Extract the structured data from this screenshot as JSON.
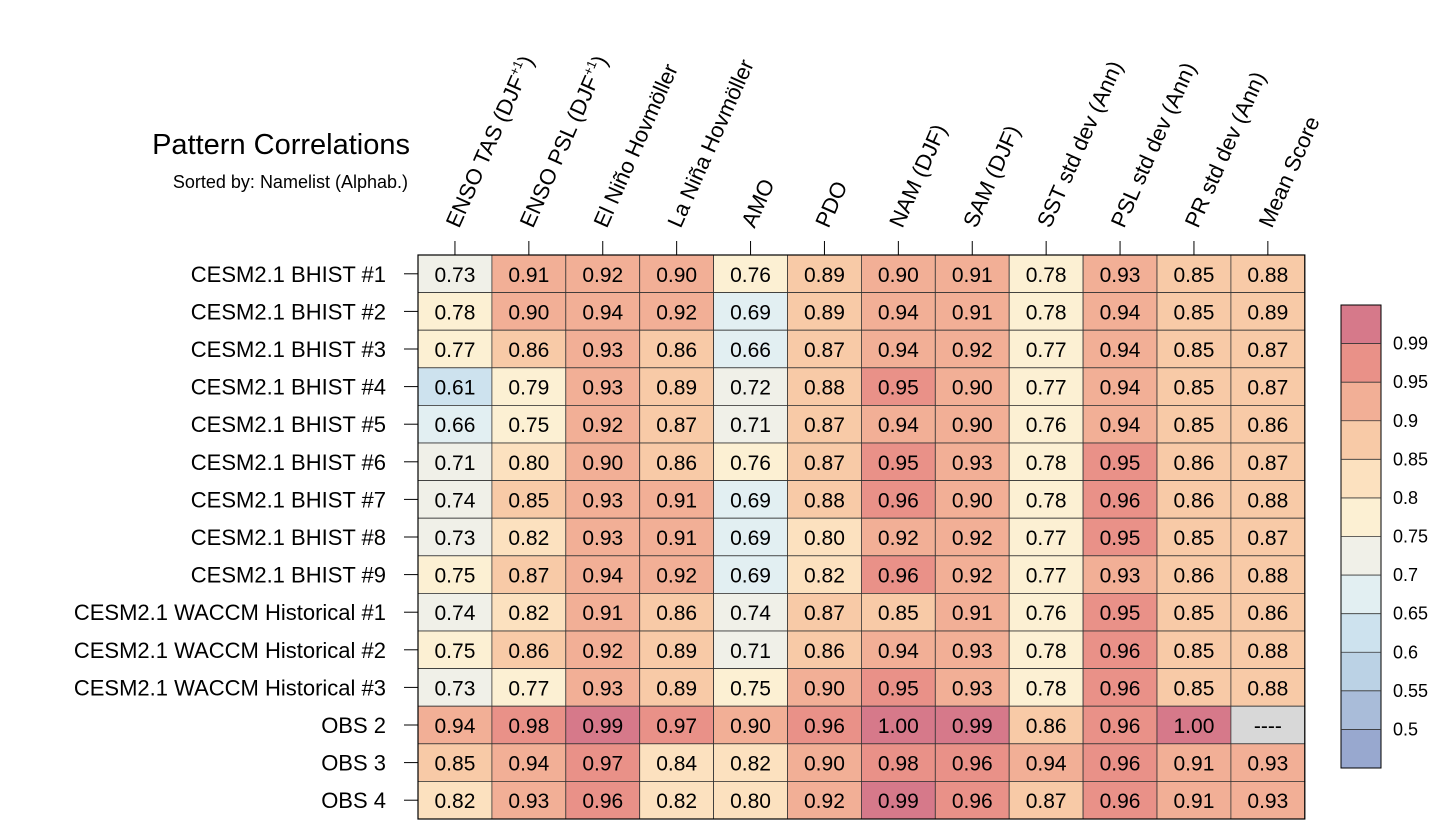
{
  "chart_data": {
    "type": "heatmap",
    "title": "Pattern Correlations",
    "subtitle": "Sorted by: Namelist (Alphab.)",
    "columns": [
      {
        "base": "ENSO TAS (DJF",
        "sup": "+1",
        "tail": ")"
      },
      {
        "base": "ENSO PSL (DJF",
        "sup": "+1",
        "tail": ")"
      },
      {
        "base": "El Niño Hovmöller",
        "sup": "",
        "tail": ""
      },
      {
        "base": "La Niña Hovmöller",
        "sup": "",
        "tail": ""
      },
      {
        "base": "AMO",
        "sup": "",
        "tail": ""
      },
      {
        "base": "PDO",
        "sup": "",
        "tail": ""
      },
      {
        "base": "NAM (DJF)",
        "sup": "",
        "tail": ""
      },
      {
        "base": "SAM (DJF)",
        "sup": "",
        "tail": ""
      },
      {
        "base": "SST std dev (Ann)",
        "sup": "",
        "tail": ""
      },
      {
        "base": "PSL std dev (Ann)",
        "sup": "",
        "tail": ""
      },
      {
        "base": "PR std dev (Ann)",
        "sup": "",
        "tail": ""
      },
      {
        "base": "Mean Score",
        "sup": "",
        "tail": ""
      }
    ],
    "rows": [
      "CESM2.1 BHIST #1",
      "CESM2.1 BHIST #2",
      "CESM2.1 BHIST #3",
      "CESM2.1 BHIST #4",
      "CESM2.1 BHIST #5",
      "CESM2.1 BHIST #6",
      "CESM2.1 BHIST #7",
      "CESM2.1 BHIST #8",
      "CESM2.1 BHIST #9",
      "CESM2.1 WACCM Historical #1",
      "CESM2.1 WACCM Historical #2",
      "CESM2.1 WACCM Historical #3",
      "OBS 2",
      "OBS 3",
      "OBS 4"
    ],
    "values": [
      [
        "0.73",
        "0.91",
        "0.92",
        "0.90",
        "0.76",
        "0.89",
        "0.90",
        "0.91",
        "0.78",
        "0.93",
        "0.85",
        "0.88"
      ],
      [
        "0.78",
        "0.90",
        "0.94",
        "0.92",
        "0.69",
        "0.89",
        "0.94",
        "0.91",
        "0.78",
        "0.94",
        "0.85",
        "0.89"
      ],
      [
        "0.77",
        "0.86",
        "0.93",
        "0.86",
        "0.66",
        "0.87",
        "0.94",
        "0.92",
        "0.77",
        "0.94",
        "0.85",
        "0.87"
      ],
      [
        "0.61",
        "0.79",
        "0.93",
        "0.89",
        "0.72",
        "0.88",
        "0.95",
        "0.90",
        "0.77",
        "0.94",
        "0.85",
        "0.87"
      ],
      [
        "0.66",
        "0.75",
        "0.92",
        "0.87",
        "0.71",
        "0.87",
        "0.94",
        "0.90",
        "0.76",
        "0.94",
        "0.85",
        "0.86"
      ],
      [
        "0.71",
        "0.80",
        "0.90",
        "0.86",
        "0.76",
        "0.87",
        "0.95",
        "0.93",
        "0.78",
        "0.95",
        "0.86",
        "0.87"
      ],
      [
        "0.74",
        "0.85",
        "0.93",
        "0.91",
        "0.69",
        "0.88",
        "0.96",
        "0.90",
        "0.78",
        "0.96",
        "0.86",
        "0.88"
      ],
      [
        "0.73",
        "0.82",
        "0.93",
        "0.91",
        "0.69",
        "0.80",
        "0.92",
        "0.92",
        "0.77",
        "0.95",
        "0.85",
        "0.87"
      ],
      [
        "0.75",
        "0.87",
        "0.94",
        "0.92",
        "0.69",
        "0.82",
        "0.96",
        "0.92",
        "0.77",
        "0.93",
        "0.86",
        "0.88"
      ],
      [
        "0.74",
        "0.82",
        "0.91",
        "0.86",
        "0.74",
        "0.87",
        "0.85",
        "0.91",
        "0.76",
        "0.95",
        "0.85",
        "0.86"
      ],
      [
        "0.75",
        "0.86",
        "0.92",
        "0.89",
        "0.71",
        "0.86",
        "0.94",
        "0.93",
        "0.78",
        "0.96",
        "0.85",
        "0.88"
      ],
      [
        "0.73",
        "0.77",
        "0.93",
        "0.89",
        "0.75",
        "0.90",
        "0.95",
        "0.93",
        "0.78",
        "0.96",
        "0.85",
        "0.88"
      ],
      [
        "0.94",
        "0.98",
        "0.99",
        "0.97",
        "0.90",
        "0.96",
        "1.00",
        "0.99",
        "0.86",
        "0.96",
        "1.00",
        "----"
      ],
      [
        "0.85",
        "0.94",
        "0.97",
        "0.84",
        "0.82",
        "0.90",
        "0.98",
        "0.96",
        "0.94",
        "0.96",
        "0.91",
        "0.93"
      ],
      [
        "0.82",
        "0.93",
        "0.96",
        "0.82",
        "0.80",
        "0.92",
        "0.99",
        "0.96",
        "0.87",
        "0.96",
        "0.91",
        "0.93"
      ]
    ],
    "missing_value": "----",
    "colorbar": {
      "levels": [
        0.5,
        0.55,
        0.6,
        0.65,
        0.7,
        0.75,
        0.8,
        0.85,
        0.9,
        0.95,
        0.99
      ],
      "labels": [
        "0.5",
        "0.55",
        "0.6",
        "0.65",
        "0.7",
        "0.75",
        "0.8",
        "0.85",
        "0.9",
        "0.95",
        "0.99"
      ],
      "colors": [
        "#98A8CF",
        "#A9BCD9",
        "#BBD2E5",
        "#CDE2EE",
        "#E2EFF2",
        "#F0F0E8",
        "#FCF0D3",
        "#FCE1BF",
        "#F8CAA7",
        "#F2AF96",
        "#E99188",
        "#D6798A"
      ],
      "missing_color": "#D8D8D8"
    }
  }
}
